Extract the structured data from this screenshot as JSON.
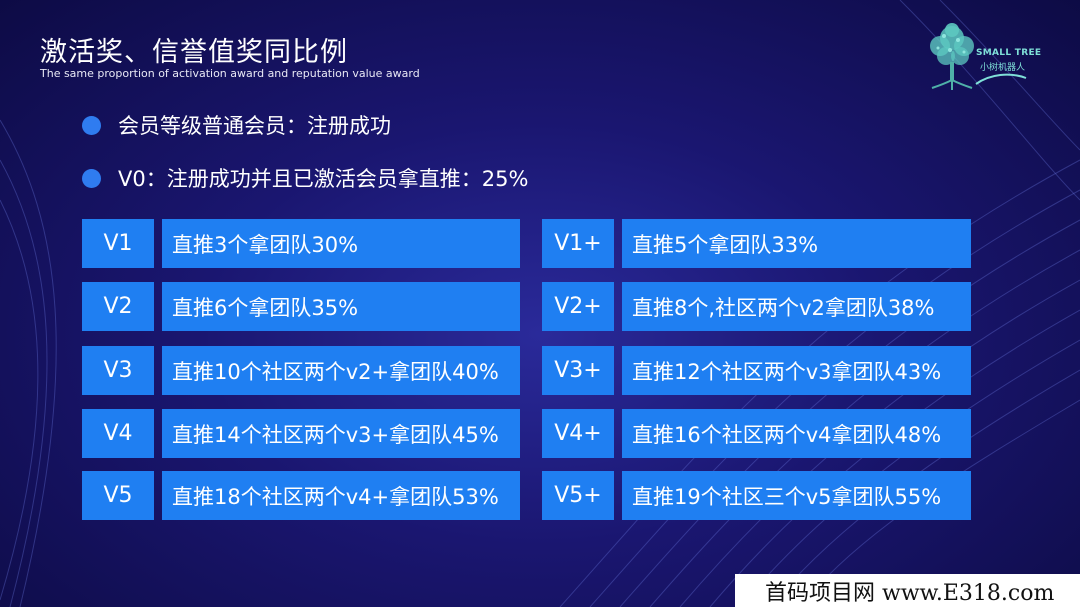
{
  "header": {
    "title": "激活奖、信誉值奖同比例",
    "subtitle": "The same proportion of activation award and reputation value award"
  },
  "logo": {
    "name_en": "SMALL TREE",
    "name_cn": "小树机器人",
    "icon": "tree-icon"
  },
  "bullets": [
    {
      "text": "会员等级普通会员：注册成功"
    },
    {
      "text": "V0：注册成功并且已激活会员拿直推：25%"
    }
  ],
  "levels": {
    "left": [
      {
        "level": "V1",
        "desc": "直推3个拿团队30%"
      },
      {
        "level": "V2",
        "desc": "直推6个拿团队35%"
      },
      {
        "level": "V3",
        "desc": "直推10个社区两个v2+拿团队40%"
      },
      {
        "level": "V4",
        "desc": "直推14个社区两个v3+拿团队45%"
      },
      {
        "level": "V5",
        "desc": "直推18个社区两个v4+拿团队53%"
      }
    ],
    "right": [
      {
        "level": "V1+",
        "desc": "直推5个拿团队33%"
      },
      {
        "level": "V2+",
        "desc": "直推8个,社区两个v2拿团队38%"
      },
      {
        "level": "V3+",
        "desc": "直推12个社区两个v3拿团队43%"
      },
      {
        "level": "V4+",
        "desc": "直推16个社区两个v4拿团队48%"
      },
      {
        "level": "V5+",
        "desc": "直推19个社区三个v5拿团队55%"
      }
    ]
  },
  "watermark": {
    "text": "首码项目网 www.E318.com"
  },
  "colors": {
    "background": "#1a1670",
    "box": "#1f7ff2",
    "bullet": "#2f7cf0",
    "logo_accent": "#7fe0d8"
  }
}
